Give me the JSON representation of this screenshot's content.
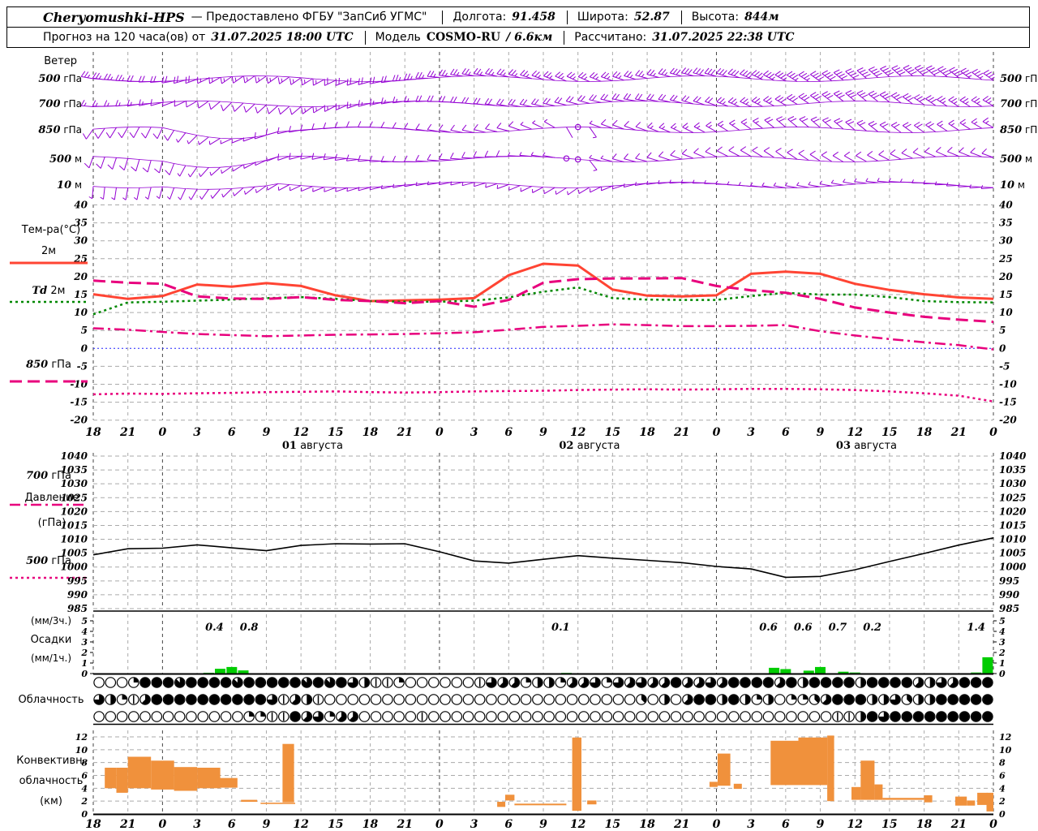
{
  "header": {
    "station": "Cheryomushki-HPS",
    "provider": "—  Предоставлено ФГБУ \"ЗапСиб УГМС\"",
    "lon_label": "Долгота:",
    "lon": "91.458",
    "lat_label": "Широта:",
    "lat": "52.87",
    "alt_label": "Высота:",
    "alt": "844м",
    "row2_prefix": "Прогноз на 120 часа(ов) от",
    "run_time": "31.07.2025 18:00 UTC",
    "model_label": "Модель",
    "model_name": "COSMO-RU",
    "model_res": "/ 6.6км",
    "calc_label": "Рассчитано:",
    "calc_time": "31.07.2025 22:38 UTC"
  },
  "panel_labels": {
    "wind_title": "Ветер",
    "temp_title": "Тем-ра(°C)",
    "pressure_title_1": "Давление",
    "pressure_title_2": "(гПа)",
    "precip_unit_3h": "(мм/3ч.)",
    "precip_title": "Осадки",
    "precip_unit_1h": "(мм/1ч.)",
    "cloud_title": "Облачность",
    "conv_title_1": "Конвективн.",
    "conv_title_2": "облачность",
    "conv_title_3": "(км)"
  },
  "colors": {
    "barb": "#9400D3",
    "t2m": "#FF4433",
    "td2m": "#008800",
    "magenta": "#E8007D",
    "zero_line": "#2222FF",
    "grid": "#AAAAAA",
    "midnight": "#444444",
    "precip_bar": "#00CC00",
    "conv_bar": "#F0913C",
    "axis": "#000000"
  },
  "chart_data": {
    "type": "meteogram",
    "x_axis": {
      "start": "31.07.2025 18:00 UTC",
      "hours_shown": 78,
      "tick_step_hours": 3,
      "tick_labels": [
        "18",
        "21",
        "0",
        "3",
        "6",
        "9",
        "12",
        "15",
        "18",
        "21",
        "0",
        "3",
        "6",
        "9",
        "12",
        "15",
        "18",
        "21",
        "0",
        "3",
        "6",
        "9",
        "12",
        "15",
        "18",
        "21",
        "0"
      ],
      "date_labels": [
        {
          "num": "01",
          "month": "августа",
          "hour": 19
        },
        {
          "num": "02",
          "month": "августа",
          "hour": 43
        },
        {
          "num": "03",
          "month": "августа",
          "hour": 67
        }
      ]
    },
    "wind": {
      "type": "barbs",
      "rows": [
        {
          "num": "500",
          "unit": "гПа",
          "y": 97,
          "keyframes": [
            [
              0,
              280,
              25
            ],
            [
              6,
              265,
              20
            ],
            [
              12,
              235,
              15
            ],
            [
              18,
              235,
              15
            ],
            [
              24,
              255,
              20
            ],
            [
              30,
              275,
              25
            ],
            [
              36,
              285,
              25
            ],
            [
              42,
              295,
              25
            ],
            [
              48,
              285,
              25
            ],
            [
              54,
              285,
              30
            ],
            [
              60,
              300,
              35
            ],
            [
              66,
              310,
              40
            ],
            [
              72,
              310,
              40
            ],
            [
              78,
              305,
              35
            ]
          ]
        },
        {
          "num": "700",
          "unit": "гПа",
          "y": 128,
          "keyframes": [
            [
              0,
              275,
              15
            ],
            [
              6,
              255,
              12
            ],
            [
              12,
              225,
              10
            ],
            [
              18,
              230,
              12
            ],
            [
              24,
              255,
              15
            ],
            [
              30,
              270,
              18
            ],
            [
              36,
              280,
              20
            ],
            [
              42,
              285,
              18
            ],
            [
              48,
              280,
              20
            ],
            [
              54,
              290,
              22
            ],
            [
              60,
              300,
              28
            ],
            [
              66,
              310,
              30
            ],
            [
              72,
              305,
              28
            ],
            [
              78,
              300,
              25
            ]
          ]
        },
        {
          "num": "850",
          "unit": "гПа",
          "y": 160,
          "keyframes": [
            [
              0,
              215,
              10
            ],
            [
              6,
              205,
              8
            ],
            [
              12,
              245,
              6
            ],
            [
              18,
              260,
              10
            ],
            [
              24,
              270,
              10
            ],
            [
              30,
              280,
              12
            ],
            [
              36,
              285,
              10
            ],
            [
              40,
              300,
              4
            ],
            [
              42,
              0,
              0
            ],
            [
              44,
              290,
              6
            ],
            [
              48,
              290,
              12
            ],
            [
              54,
              300,
              15
            ],
            [
              60,
              310,
              18
            ],
            [
              66,
              310,
              18
            ],
            [
              72,
              305,
              18
            ],
            [
              78,
              300,
              15
            ]
          ]
        },
        {
          "num": "500",
          "unit": "м",
          "y": 196,
          "keyframes": [
            [
              0,
              200,
              8
            ],
            [
              6,
              195,
              8
            ],
            [
              12,
              235,
              5
            ],
            [
              18,
              255,
              8
            ],
            [
              24,
              265,
              8
            ],
            [
              30,
              275,
              10
            ],
            [
              36,
              270,
              8
            ],
            [
              40,
              280,
              3
            ],
            [
              42,
              0,
              0
            ],
            [
              44,
              285,
              5
            ],
            [
              48,
              285,
              10
            ],
            [
              54,
              295,
              12
            ],
            [
              60,
              305,
              12
            ],
            [
              66,
              300,
              12
            ],
            [
              72,
              295,
              10
            ],
            [
              78,
              290,
              10
            ]
          ]
        },
        {
          "num": "10",
          "unit": "м",
          "y": 228,
          "keyframes": [
            [
              0,
              185,
              5
            ],
            [
              6,
              195,
              5
            ],
            [
              12,
              225,
              4
            ],
            [
              18,
              245,
              5
            ],
            [
              24,
              255,
              5
            ],
            [
              30,
              260,
              6
            ],
            [
              36,
              250,
              5
            ],
            [
              42,
              235,
              3
            ],
            [
              48,
              260,
              5
            ],
            [
              54,
              270,
              6
            ],
            [
              60,
              280,
              6
            ],
            [
              66,
              280,
              5
            ],
            [
              72,
              270,
              5
            ],
            [
              78,
              265,
              5
            ]
          ]
        }
      ]
    },
    "temperature": {
      "ylim": [
        -20,
        40
      ],
      "tick_step": 5,
      "step_hours": 3,
      "legend": [
        {
          "num": "",
          "name": "2м",
          "style": "solid"
        },
        {
          "num": "Td",
          "name": "2м",
          "style": "dashed-green"
        },
        {
          "num": "850",
          "name": "гПа",
          "style": "longdash"
        },
        {
          "num": "700",
          "name": "гПа",
          "style": "dashdot"
        },
        {
          "num": "500",
          "name": "гПа",
          "style": "dotted"
        }
      ],
      "series": [
        {
          "name": "t2m",
          "values": [
            15.1,
            13.8,
            14.6,
            17.8,
            17.2,
            18.2,
            17.4,
            14.8,
            13.2,
            13.4,
            13.6,
            14.0,
            20.4,
            23.6,
            23.1,
            16.4,
            14.7,
            14.5,
            14.8,
            20.8,
            21.4,
            20.8,
            18.0,
            16.3,
            15.1,
            14.2,
            13.8
          ]
        },
        {
          "name": "td2m",
          "values": [
            9.5,
            12.8,
            13.0,
            13.3,
            13.6,
            14.0,
            14.3,
            13.8,
            13.2,
            13.0,
            13.0,
            13.3,
            14.2,
            15.8,
            17.0,
            14.0,
            13.6,
            13.5,
            13.5,
            14.6,
            15.5,
            15.0,
            15.0,
            14.3,
            13.2,
            12.9,
            12.8
          ]
        },
        {
          "name": "t850",
          "values": [
            18.9,
            18.3,
            18.0,
            14.5,
            13.9,
            13.8,
            14.3,
            13.5,
            13.2,
            12.6,
            13.2,
            11.6,
            13.5,
            18.3,
            19.3,
            19.5,
            19.5,
            19.6,
            17.4,
            16.2,
            15.5,
            13.8,
            11.4,
            10.0,
            8.8,
            8.0,
            7.4
          ]
        },
        {
          "name": "t700",
          "values": [
            5.6,
            5.2,
            4.6,
            4.0,
            3.7,
            3.4,
            3.6,
            3.8,
            3.9,
            4.0,
            4.2,
            4.5,
            5.2,
            6.0,
            6.3,
            6.7,
            6.5,
            6.2,
            6.2,
            6.3,
            6.5,
            4.8,
            3.6,
            2.6,
            1.7,
            0.9,
            -0.3
          ]
        },
        {
          "name": "t500",
          "values": [
            -12.8,
            -12.6,
            -12.7,
            -12.5,
            -12.4,
            -12.2,
            -12.1,
            -12.0,
            -12.2,
            -12.3,
            -12.2,
            -12.0,
            -11.9,
            -11.8,
            -11.6,
            -11.5,
            -11.4,
            -11.5,
            -11.4,
            -11.3,
            -11.3,
            -11.4,
            -11.6,
            -12.0,
            -12.5,
            -13.2,
            -14.8
          ]
        }
      ]
    },
    "pressure": {
      "ylim": [
        985,
        1040
      ],
      "tick_step": 5,
      "step_hours": 3,
      "values": [
        1004.4,
        1006.6,
        1006.8,
        1008.0,
        1006.9,
        1005.9,
        1007.8,
        1008.4,
        1008.3,
        1008.4,
        1005.5,
        1002.2,
        1001.4,
        1002.8,
        1004.1,
        1003.2,
        1002.4,
        1001.6,
        1000.2,
        999.3,
        996.3,
        996.6,
        999.0,
        1002.0,
        1004.9,
        1007.9,
        1010.5
      ]
    },
    "precipitation": {
      "ylim": [
        0,
        5
      ],
      "sum3h_labels": [
        [
          10.5,
          "0.4"
        ],
        [
          13.5,
          "0.8"
        ],
        [
          40.5,
          "0.1"
        ],
        [
          58.5,
          "0.6"
        ],
        [
          61.5,
          "0.6"
        ],
        [
          64.5,
          "0.7"
        ],
        [
          67.5,
          "0.2"
        ],
        [
          76.5,
          "1.4"
        ]
      ],
      "bars_1h": [
        [
          10,
          0.08
        ],
        [
          11,
          0.45
        ],
        [
          12,
          0.62
        ],
        [
          13,
          0.3
        ],
        [
          41,
          0.06
        ],
        [
          59,
          0.55
        ],
        [
          60,
          0.42
        ],
        [
          62,
          0.28
        ],
        [
          63,
          0.62
        ],
        [
          65,
          0.18
        ],
        [
          66,
          0.1
        ],
        [
          76.5,
          0.1
        ],
        [
          77.5,
          1.55
        ]
      ]
    },
    "cloud": {
      "rows_y": [
        841,
        862,
        883
      ],
      "octas_upper": "000288878888788888787864112000000165524425562656558556588885848888488885465888",
      "octas_middle": "642158888888888615410000000000000000000000000003040588484240223588844634488888",
      "octas_lower": "000000000000022118562550000010000000000000000000000000000000000011486888888888"
    },
    "convective": {
      "ylim": [
        0,
        12
      ],
      "tick_step": 2,
      "bars": [
        [
          1.0,
          2.0,
          4.0,
          7.2
        ],
        [
          2.0,
          3.0,
          3.3,
          7.2
        ],
        [
          3.0,
          5.0,
          4.0,
          8.9
        ],
        [
          5.0,
          7.0,
          3.8,
          8.3
        ],
        [
          7.0,
          9.0,
          3.6,
          7.3
        ],
        [
          9.0,
          11.0,
          4.0,
          7.2
        ],
        [
          11.0,
          12.5,
          4.1,
          5.6
        ],
        [
          12.8,
          14.2,
          1.9,
          2.2
        ],
        [
          14.5,
          17.5,
          1.55,
          1.75
        ],
        [
          16.4,
          17.4,
          1.8,
          10.9
        ],
        [
          35.0,
          35.7,
          1.1,
          1.9
        ],
        [
          35.7,
          36.5,
          2.1,
          3.0
        ],
        [
          36.5,
          41.0,
          1.35,
          1.6
        ],
        [
          41.5,
          42.3,
          0.5,
          11.9
        ],
        [
          42.8,
          43.6,
          1.5,
          2.1
        ],
        [
          53.4,
          54.1,
          4.2,
          5.0
        ],
        [
          54.1,
          55.2,
          4.4,
          9.4
        ],
        [
          55.5,
          56.2,
          3.9,
          4.7
        ],
        [
          58.7,
          61.1,
          4.5,
          11.4
        ],
        [
          61.1,
          63.6,
          4.5,
          11.9
        ],
        [
          63.6,
          64.2,
          2.0,
          12.2
        ],
        [
          65.7,
          66.5,
          2.2,
          4.2
        ],
        [
          66.5,
          67.7,
          2.2,
          8.3
        ],
        [
          67.7,
          68.4,
          2.2,
          4.6
        ],
        [
          68.4,
          72.0,
          2.2,
          2.5
        ],
        [
          72.0,
          72.7,
          1.8,
          2.9
        ],
        [
          74.7,
          75.7,
          1.3,
          2.7
        ],
        [
          75.7,
          76.4,
          1.3,
          2.1
        ],
        [
          76.6,
          77.5,
          1.4,
          3.3
        ],
        [
          77.4,
          78.0,
          0.4,
          3.3
        ]
      ]
    }
  }
}
